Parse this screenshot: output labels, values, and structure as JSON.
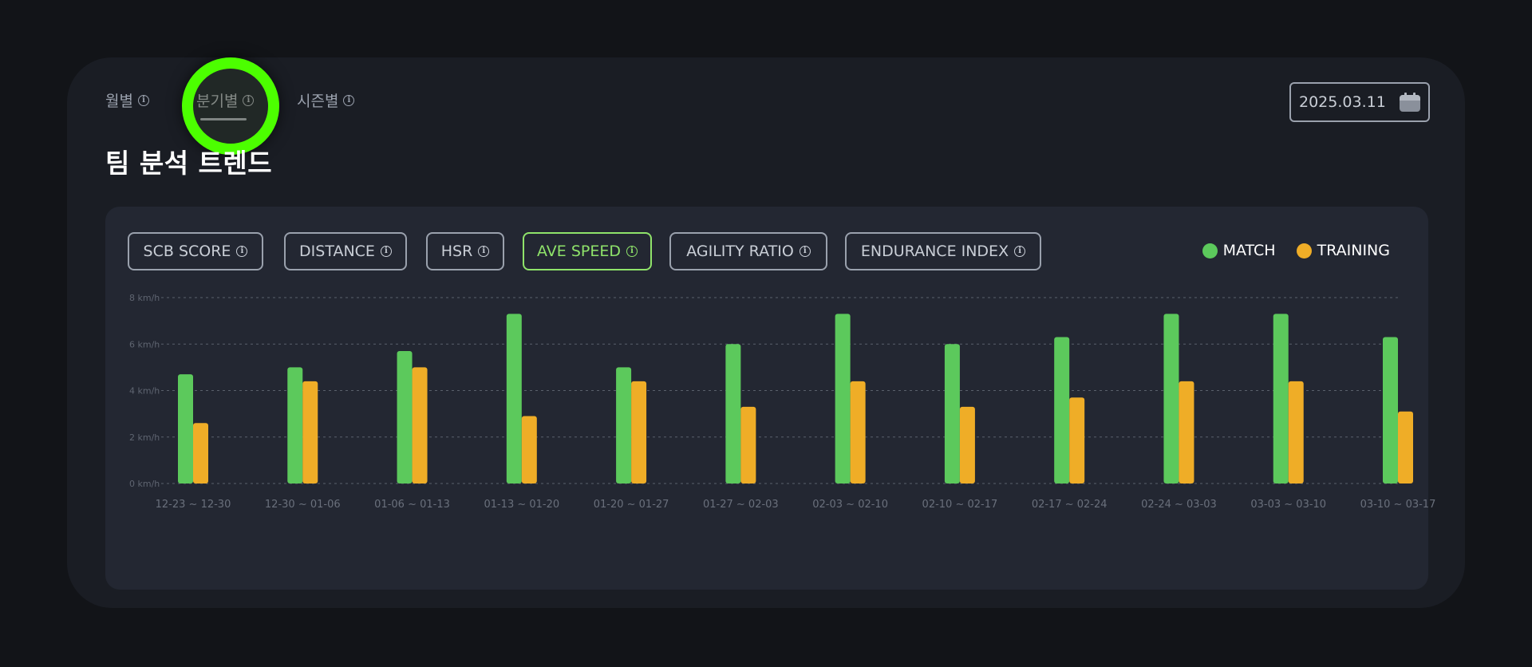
{
  "tabs": [
    {
      "label": "월별",
      "icon": "info-icon"
    },
    {
      "label": "분기별",
      "icon": "info-icon",
      "active": true
    },
    {
      "label": "시즌별",
      "icon": "info-icon"
    }
  ],
  "title": "팀 분석 트렌드",
  "date_picker": {
    "value": "2025.03.11",
    "icon": "calendar-icon"
  },
  "metrics": [
    {
      "label": "SCB SCORE"
    },
    {
      "label": "DISTANCE"
    },
    {
      "label": "HSR"
    },
    {
      "label": "AVE SPEED",
      "active": true
    },
    {
      "label": "AGILITY RATIO"
    },
    {
      "label": "ENDURANCE INDEX"
    }
  ],
  "legend": [
    {
      "label": "MATCH",
      "color": "#5cc95c"
    },
    {
      "label": "TRAINING",
      "color": "#efad27"
    }
  ],
  "colors": {
    "accent": "#8fe36a",
    "highlight_ring": "#4cff00"
  },
  "chart_data": {
    "type": "bar",
    "y_unit": "km/h",
    "y_ticks": [
      "8 km/h",
      "6 km/h",
      "4 km/h",
      "2 km/h",
      "0 km/h"
    ],
    "ylim": [
      0,
      8
    ],
    "grid": true,
    "legend_placement": "top-right",
    "categories": [
      "12-23 ~ 12-30",
      "12-30 ~ 01-06",
      "01-06 ~ 01-13",
      "01-13 ~ 01-20",
      "01-20 ~ 01-27",
      "01-27 ~ 02-03",
      "02-03 ~ 02-10",
      "02-10 ~ 02-17",
      "02-17 ~ 02-24",
      "02-24 ~ 03-03",
      "03-03 ~ 03-10",
      "03-10 ~ 03-17"
    ],
    "series": [
      {
        "name": "MATCH",
        "color": "#5cc95c",
        "values": [
          4.7,
          5.0,
          5.7,
          7.3,
          5.0,
          6.0,
          7.3,
          6.0,
          6.3,
          7.3,
          7.3,
          6.3
        ]
      },
      {
        "name": "TRAINING",
        "color": "#efad27",
        "values": [
          2.6,
          4.4,
          5.0,
          2.9,
          4.4,
          3.3,
          4.4,
          3.3,
          3.7,
          4.4,
          4.4,
          3.1
        ]
      }
    ]
  }
}
